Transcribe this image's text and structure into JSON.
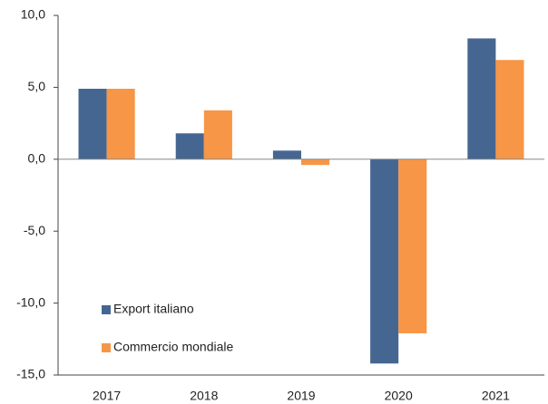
{
  "chart_data": {
    "type": "bar",
    "categories": [
      "2017",
      "2018",
      "2019",
      "2020",
      "2021"
    ],
    "series": [
      {
        "name": "Export italiano",
        "color": "#466692",
        "values": [
          4.9,
          1.8,
          0.6,
          -14.2,
          8.4
        ]
      },
      {
        "name": "Commercio mondiale",
        "color": "#f79646",
        "values": [
          4.9,
          3.4,
          -0.4,
          -12.1,
          6.9
        ]
      }
    ],
    "ylim": [
      -15,
      10
    ],
    "yticks": [
      {
        "value": -15,
        "label": "-15,0"
      },
      {
        "value": -10,
        "label": "-10,0"
      },
      {
        "value": -5,
        "label": "-5,0"
      },
      {
        "value": 0,
        "label": "0,0"
      },
      {
        "value": 5,
        "label": "5,0"
      },
      {
        "value": 10,
        "label": "10,0"
      }
    ],
    "legend": "lower left"
  }
}
